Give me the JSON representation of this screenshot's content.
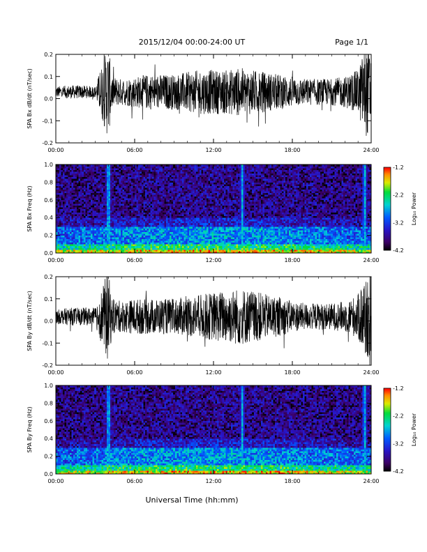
{
  "header": {
    "title": "2015/12/04  00:00-24:00 UT",
    "page": "Page 1/1"
  },
  "xlabel": "Universal Time (hh:mm)",
  "colorbar_label": "Log₁₀ Power",
  "chart_data": [
    {
      "type": "line",
      "ylabel": "SPA Bx dB/dt (nT/sec)",
      "xlim": [
        0,
        24
      ],
      "ylim": [
        -0.2,
        0.2
      ],
      "x_ticks": [
        "00:00",
        "06:00",
        "12:00",
        "18:00",
        "24:00"
      ],
      "y_ticks": [
        "-0.2",
        "-0.1",
        "0.0",
        "0.1",
        "0.2"
      ],
      "line_color": "#000000",
      "series": [
        {
          "x": [
            0,
            1,
            2,
            3,
            3.9,
            4.0,
            4.3,
            5,
            6,
            7,
            8,
            9,
            10,
            11,
            12,
            13,
            14,
            15,
            16,
            17,
            18,
            19,
            20,
            21,
            22,
            23,
            23.5,
            23.8,
            24
          ],
          "center": [
            0.03,
            0.03,
            0.03,
            0.03,
            0.03,
            0.03,
            0.03,
            0.03,
            0.03,
            0.03,
            0.03,
            0.03,
            0.03,
            0.03,
            0.03,
            0.03,
            0.03,
            0.03,
            0.03,
            0.03,
            0.03,
            0.03,
            0.03,
            0.03,
            0.03,
            0.03,
            0.03,
            0.03,
            0.03
          ],
          "amplitude": [
            0.025,
            0.03,
            0.03,
            0.025,
            0.2,
            0.2,
            0.07,
            0.06,
            0.07,
            0.08,
            0.08,
            0.08,
            0.09,
            0.1,
            0.1,
            0.1,
            0.11,
            0.1,
            0.09,
            0.08,
            0.07,
            0.06,
            0.06,
            0.06,
            0.07,
            0.1,
            0.2,
            0.2,
            0.2
          ]
        }
      ]
    },
    {
      "type": "heatmap",
      "ylabel": "SPA Bx Freq (Hz)",
      "xlim": [
        0,
        24
      ],
      "ylim": [
        0,
        1
      ],
      "x_ticks": [
        "00:00",
        "06:00",
        "12:00",
        "18:00",
        "24:00"
      ],
      "y_ticks": [
        "0.0",
        "0.2",
        "0.4",
        "0.6",
        "0.8",
        "1.0"
      ],
      "colorbar": {
        "min": -4.2,
        "max": -1.2,
        "ticks": [
          "-1.2",
          "-2.2",
          "-3.2",
          "-4.2"
        ]
      },
      "z_bands": [
        {
          "f_max": 0.03,
          "level": -2.0
        },
        {
          "f_max": 0.1,
          "level": -2.6
        },
        {
          "f_max": 0.3,
          "level": -3.2
        },
        {
          "f_max": 1.0,
          "level": -3.8
        }
      ],
      "vertical_events": [
        {
          "t": 4.0,
          "level": -2.0
        },
        {
          "t": 14.2,
          "level": -2.4
        },
        {
          "t": 23.5,
          "level": -2.2
        }
      ]
    },
    {
      "type": "line",
      "ylabel": "SPA By dB/dt (nT/sec)",
      "xlim": [
        0,
        24
      ],
      "ylim": [
        -0.2,
        0.2
      ],
      "x_ticks": [
        "00:00",
        "06:00",
        "12:00",
        "18:00",
        "24:00"
      ],
      "y_ticks": [
        "-0.2",
        "-0.1",
        "0.0",
        "0.1",
        "0.2"
      ],
      "line_color": "#000000",
      "series": [
        {
          "x": [
            0,
            1,
            2,
            3,
            3.9,
            4.0,
            4.3,
            5,
            6,
            7,
            8,
            9,
            10,
            11,
            12,
            13,
            14,
            15,
            16,
            17,
            18,
            19,
            20,
            21,
            22,
            23,
            23.5,
            23.8,
            24
          ],
          "center": [
            0.02,
            0.02,
            0.02,
            0.02,
            0.02,
            0.02,
            0.02,
            0.02,
            0.02,
            0.02,
            0.02,
            0.02,
            0.02,
            0.02,
            0.02,
            0.02,
            0.02,
            0.02,
            0.02,
            0.02,
            0.02,
            0.02,
            0.02,
            0.02,
            0.02,
            0.02,
            0.02,
            0.02,
            0.02
          ],
          "amplitude": [
            0.03,
            0.04,
            0.04,
            0.04,
            0.2,
            0.2,
            0.08,
            0.07,
            0.08,
            0.08,
            0.08,
            0.08,
            0.09,
            0.1,
            0.11,
            0.12,
            0.13,
            0.12,
            0.1,
            0.09,
            0.07,
            0.06,
            0.06,
            0.06,
            0.07,
            0.1,
            0.2,
            0.2,
            0.2
          ]
        }
      ]
    },
    {
      "type": "heatmap",
      "ylabel": "SPA By Freq (Hz)",
      "xlim": [
        0,
        24
      ],
      "ylim": [
        0,
        1
      ],
      "x_ticks": [
        "00:00",
        "06:00",
        "12:00",
        "18:00",
        "24:00"
      ],
      "y_ticks": [
        "0.0",
        "0.2",
        "0.4",
        "0.6",
        "0.8",
        "1.0"
      ],
      "colorbar": {
        "min": -4.2,
        "max": -1.2,
        "ticks": [
          "-1.2",
          "-2.2",
          "-3.2",
          "-4.2"
        ]
      },
      "z_bands": [
        {
          "f_max": 0.03,
          "level": -2.0
        },
        {
          "f_max": 0.1,
          "level": -2.6
        },
        {
          "f_max": 0.3,
          "level": -3.2
        },
        {
          "f_max": 1.0,
          "level": -3.8
        }
      ],
      "vertical_events": [
        {
          "t": 4.0,
          "level": -2.0
        },
        {
          "t": 14.2,
          "level": -2.4
        },
        {
          "t": 23.5,
          "level": -2.2
        }
      ]
    }
  ]
}
